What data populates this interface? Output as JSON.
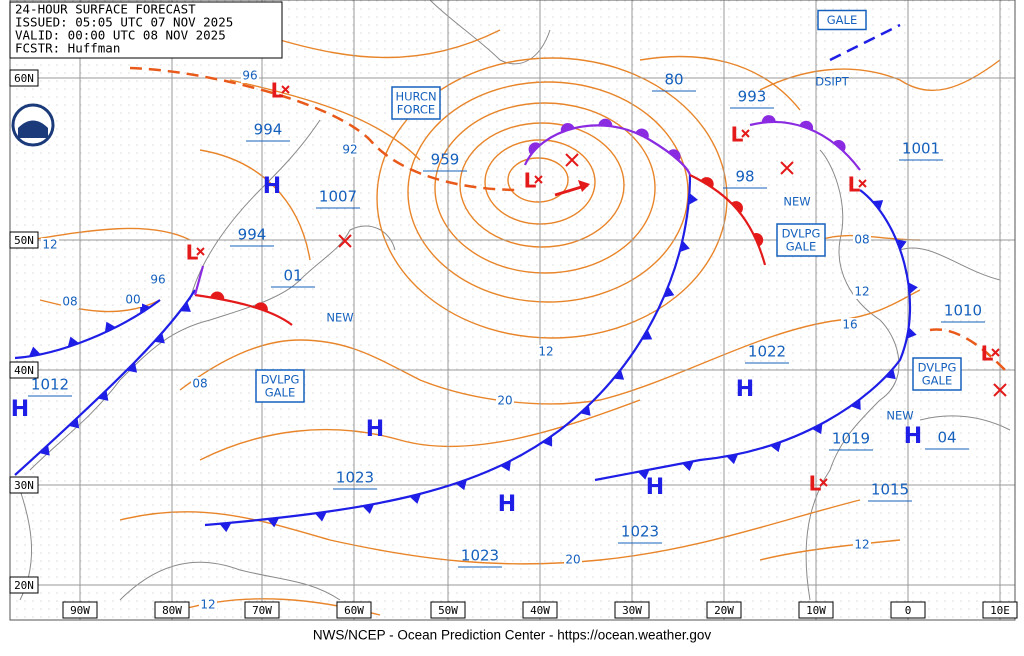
{
  "header": {
    "lines": [
      "24-HOUR SURFACE FORECAST",
      "ISSUED: 05:05 UTC 07 NOV 2025",
      "VALID:  00:00 UTC 08 NOV 2025",
      "FCSTR:  Huffman"
    ]
  },
  "lat_labels": [
    "60N",
    "50N",
    "40N",
    "30N",
    "20N"
  ],
  "lon_labels": [
    "90W",
    "80W",
    "70W",
    "60W",
    "50W",
    "40W",
    "30W",
    "20W",
    "10W",
    "0",
    "10E"
  ],
  "pressure_labels": [
    "994",
    "1007",
    "994",
    "959",
    "80",
    "993",
    "98",
    "1001",
    "1010",
    "1022",
    "1019",
    "04",
    "1015",
    "1023",
    "1023",
    "1023",
    "1012",
    "01"
  ],
  "isobar_labels": [
    "96",
    "92",
    "12",
    "08",
    "00",
    "96",
    "08",
    "12",
    "20",
    "08",
    "12",
    "16",
    "20",
    "12",
    "12"
  ],
  "highs": [
    "H",
    "H",
    "H",
    "H",
    "H",
    "H",
    "H"
  ],
  "lows": [
    "L",
    "L",
    "L",
    "L",
    "L",
    "L",
    "L"
  ],
  "warnings": [
    {
      "lines": [
        "GALE"
      ]
    },
    {
      "lines": [
        "HURCN",
        "FORCE"
      ]
    },
    {
      "lines": [
        "DVLPG",
        "GALE"
      ]
    },
    {
      "lines": [
        "DVLPG",
        "GALE"
      ]
    },
    {
      "lines": [
        "DVLPG",
        "GALE"
      ]
    }
  ],
  "notes": [
    "DSIPT",
    "NEW",
    "NEW",
    "NEW"
  ],
  "footer": "NWS/NCEP - Ocean Prediction Center - https://ocean.weather.gov"
}
